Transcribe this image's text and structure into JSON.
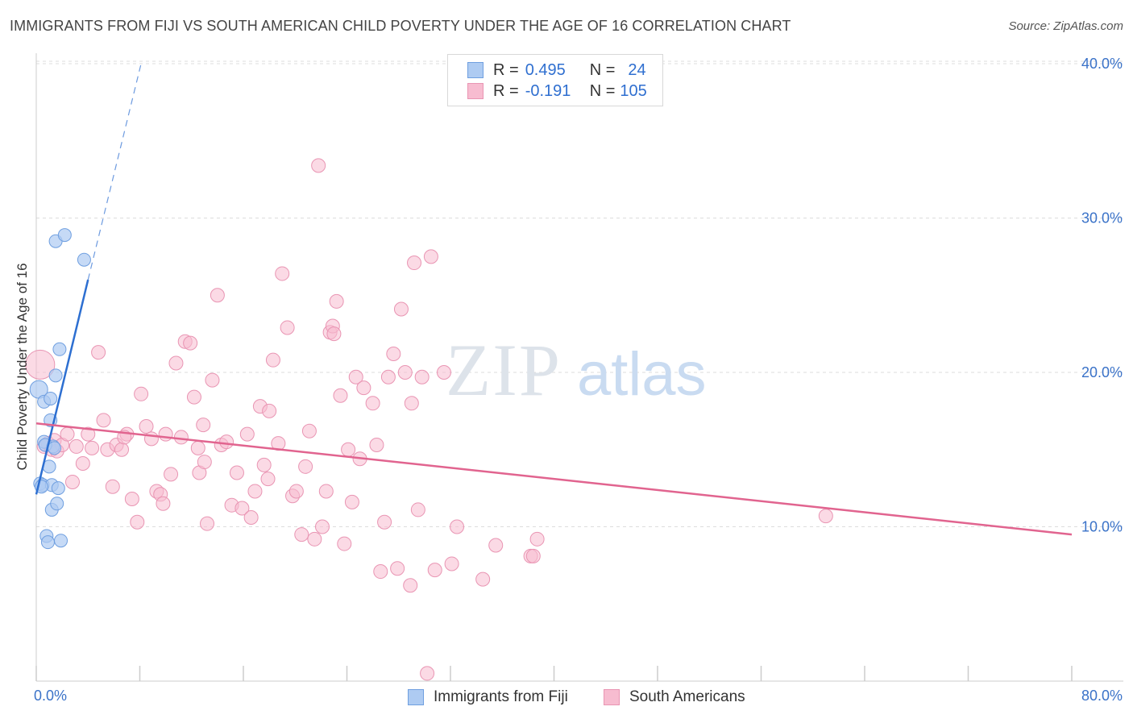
{
  "header": {
    "title": "IMMIGRANTS FROM FIJI VS SOUTH AMERICAN CHILD POVERTY UNDER THE AGE OF 16 CORRELATION CHART",
    "source": "Source: ZipAtlas.com"
  },
  "legend_stats": {
    "r_label": "R =",
    "n_label": "N =",
    "rows": [
      {
        "r": "0.495",
        "n": "24"
      },
      {
        "r": "-0.191",
        "n": "105"
      }
    ]
  },
  "colors": {
    "fiji_fill": "#aecbf2",
    "fiji_stroke": "#6f9fe0",
    "fiji_line": "#2d6fd1",
    "sa_fill": "#f7bcd0",
    "sa_stroke": "#e995b3",
    "sa_line": "#e1648f",
    "tick_label": "#3a72c8",
    "grid": "#dddddd",
    "watermark": "#dde3ea"
  },
  "watermark": {
    "zip": "ZIP",
    "atlas": "atlas"
  },
  "chart_data": {
    "type": "scatter",
    "title": "IMMIGRANTS FROM FIJI VS SOUTH AMERICAN CHILD POVERTY UNDER THE AGE OF 16 CORRELATION CHART",
    "xlabel": "",
    "ylabel": "Child Poverty Under the Age of 16",
    "xlim": [
      0,
      80
    ],
    "ylim": [
      0,
      40
    ],
    "x_tick_labels": [
      "0.0%",
      "80.0%"
    ],
    "y_ticks": [
      10,
      20,
      30,
      40
    ],
    "y_tick_labels": [
      "10.0%",
      "20.0%",
      "30.0%",
      "40.0%"
    ],
    "grid": true,
    "legend_placement": "bottom",
    "series": [
      {
        "name": "Immigrants from Fiji",
        "r": 0.495,
        "n": 24,
        "trend": {
          "x": [
            0,
            4.0
          ],
          "y": [
            12.1,
            26.0
          ],
          "dashed_to": [
            8.1,
            40.0
          ]
        },
        "points": [
          [
            0.2,
            18.9
          ],
          [
            0.3,
            12.8
          ],
          [
            0.5,
            12.7
          ],
          [
            0.6,
            15.5
          ],
          [
            0.6,
            18.1
          ],
          [
            0.8,
            9.4
          ],
          [
            0.9,
            9.0
          ],
          [
            1.0,
            13.9
          ],
          [
            1.1,
            16.9
          ],
          [
            1.2,
            12.7
          ],
          [
            1.2,
            11.1
          ],
          [
            1.3,
            15.2
          ],
          [
            1.5,
            28.5
          ],
          [
            1.5,
            19.8
          ],
          [
            1.6,
            11.5
          ],
          [
            1.7,
            12.5
          ],
          [
            1.8,
            21.5
          ],
          [
            1.9,
            9.1
          ],
          [
            2.2,
            28.9
          ],
          [
            3.7,
            27.3
          ],
          [
            0.4,
            12.6
          ],
          [
            0.7,
            15.3
          ],
          [
            1.4,
            15.1
          ],
          [
            1.1,
            18.3
          ]
        ]
      },
      {
        "name": "South Americans",
        "r": -0.191,
        "n": 105,
        "trend": {
          "x": [
            0,
            80
          ],
          "y": [
            16.7,
            9.5
          ]
        },
        "points": [
          [
            0.3,
            20.5
          ],
          [
            0.6,
            15.2
          ],
          [
            0.9,
            15.4
          ],
          [
            1.2,
            15.0
          ],
          [
            1.4,
            15.6
          ],
          [
            1.6,
            14.9
          ],
          [
            2.0,
            15.3
          ],
          [
            2.4,
            16.0
          ],
          [
            2.8,
            12.9
          ],
          [
            3.1,
            15.2
          ],
          [
            3.6,
            14.1
          ],
          [
            4.0,
            16.0
          ],
          [
            4.3,
            15.1
          ],
          [
            4.8,
            21.3
          ],
          [
            5.2,
            16.9
          ],
          [
            5.5,
            15.0
          ],
          [
            5.9,
            12.6
          ],
          [
            6.2,
            15.3
          ],
          [
            6.6,
            15.0
          ],
          [
            7.0,
            16.0
          ],
          [
            7.4,
            11.8
          ],
          [
            7.8,
            10.3
          ],
          [
            8.1,
            18.6
          ],
          [
            8.5,
            16.5
          ],
          [
            8.9,
            15.7
          ],
          [
            9.3,
            12.3
          ],
          [
            9.6,
            12.1
          ],
          [
            10.0,
            16.0
          ],
          [
            10.4,
            13.4
          ],
          [
            10.8,
            20.6
          ],
          [
            11.2,
            15.8
          ],
          [
            11.5,
            22.0
          ],
          [
            11.9,
            21.9
          ],
          [
            12.2,
            18.4
          ],
          [
            12.6,
            13.5
          ],
          [
            12.9,
            16.6
          ],
          [
            13.2,
            10.2
          ],
          [
            13.6,
            19.5
          ],
          [
            14.0,
            25.0
          ],
          [
            14.3,
            15.3
          ],
          [
            14.7,
            15.5
          ],
          [
            15.1,
            11.4
          ],
          [
            15.5,
            13.5
          ],
          [
            15.9,
            11.2
          ],
          [
            16.3,
            16.0
          ],
          [
            16.6,
            10.6
          ],
          [
            16.9,
            12.3
          ],
          [
            17.3,
            17.8
          ],
          [
            17.6,
            14.0
          ],
          [
            17.9,
            13.1
          ],
          [
            18.3,
            20.8
          ],
          [
            18.7,
            15.4
          ],
          [
            19.0,
            26.4
          ],
          [
            19.4,
            22.9
          ],
          [
            19.8,
            12.0
          ],
          [
            20.1,
            12.3
          ],
          [
            20.5,
            9.5
          ],
          [
            20.8,
            13.9
          ],
          [
            21.1,
            16.2
          ],
          [
            21.5,
            9.2
          ],
          [
            21.8,
            33.4
          ],
          [
            22.1,
            10.0
          ],
          [
            22.4,
            12.3
          ],
          [
            22.7,
            22.6
          ],
          [
            22.9,
            23.0
          ],
          [
            23.2,
            24.6
          ],
          [
            23.5,
            18.5
          ],
          [
            23.8,
            8.9
          ],
          [
            24.1,
            15.0
          ],
          [
            24.4,
            11.6
          ],
          [
            24.7,
            19.7
          ],
          [
            25.0,
            14.4
          ],
          [
            25.3,
            19.0
          ],
          [
            26.0,
            18.0
          ],
          [
            26.3,
            15.3
          ],
          [
            26.6,
            7.1
          ],
          [
            26.9,
            10.3
          ],
          [
            27.2,
            19.7
          ],
          [
            27.6,
            21.2
          ],
          [
            27.9,
            7.3
          ],
          [
            28.2,
            24.1
          ],
          [
            28.5,
            20.0
          ],
          [
            28.9,
            6.2
          ],
          [
            29.2,
            27.1
          ],
          [
            29.5,
            11.1
          ],
          [
            29.8,
            19.7
          ],
          [
            30.2,
            0.5
          ],
          [
            30.5,
            27.5
          ],
          [
            30.8,
            7.2
          ],
          [
            31.5,
            20.0
          ],
          [
            32.1,
            7.6
          ],
          [
            32.5,
            10.0
          ],
          [
            34.5,
            6.6
          ],
          [
            35.5,
            8.8
          ],
          [
            38.2,
            8.1
          ],
          [
            38.4,
            8.1
          ],
          [
            38.7,
            9.2
          ],
          [
            61.0,
            10.7
          ],
          [
            12.5,
            15.1
          ],
          [
            9.8,
            11.5
          ],
          [
            6.8,
            15.8
          ],
          [
            23.0,
            22.5
          ],
          [
            18.0,
            17.5
          ],
          [
            29.0,
            18.0
          ],
          [
            13.0,
            14.2
          ]
        ]
      }
    ]
  }
}
